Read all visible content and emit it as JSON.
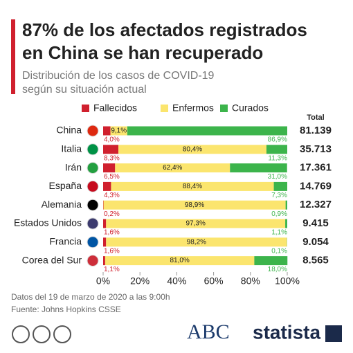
{
  "chart_data": {
    "type": "stacked_bar_horizontal",
    "title_lines": [
      "87% de los afectados registrados",
      "en China se han recuperado"
    ],
    "subtitle_lines": [
      "Distribución de los casos de COVID-19",
      "según su situación actual"
    ],
    "categories": [
      "China",
      "Italia",
      "Irán",
      "España",
      "Alemania",
      "Estados Unidos",
      "Francia",
      "Corea del Sur"
    ],
    "series": [
      {
        "name": "Fallecidos",
        "color": "#d0202e",
        "values": [
          4.0,
          8.3,
          6.5,
          4.3,
          0.2,
          1.6,
          1.6,
          1.1
        ],
        "value_labels": [
          "4,0%",
          "8,3%",
          "6,5%",
          "4,3%",
          "0,2%",
          "1,6%",
          "1,6%",
          "1,1%"
        ]
      },
      {
        "name": "Enfermos",
        "color": "#fbe56e",
        "values": [
          9.1,
          80.4,
          62.4,
          88.4,
          98.9,
          97.3,
          98.2,
          81.0
        ],
        "value_labels": [
          "9,1%",
          "80,4%",
          "62,4%",
          "88,4%",
          "98,9%",
          "97,3%",
          "98,2%",
          "81,0%"
        ]
      },
      {
        "name": "Curados",
        "color": "#3cb44b",
        "values": [
          86.9,
          11.3,
          31.0,
          7.3,
          0.9,
          1.1,
          0.1,
          18.0
        ],
        "value_labels": [
          "86,9%",
          "11,3%",
          "31,0%",
          "7,3%",
          "0,9%",
          "1,1%",
          "0,1%",
          "18,0%"
        ]
      }
    ],
    "totals": {
      "label": "Total",
      "values": [
        81139,
        35713,
        17361,
        14769,
        12327,
        9415,
        9054,
        8565
      ],
      "value_labels": [
        "81.139",
        "35.713",
        "17.361",
        "14.769",
        "12.327",
        "9.415",
        "9.054",
        "8.565"
      ]
    },
    "xlim": [
      0,
      100
    ],
    "xticks": [
      {
        "value": 0,
        "label": "0%"
      },
      {
        "value": 20,
        "label": "20%"
      },
      {
        "value": 40,
        "label": "40%"
      },
      {
        "value": 60,
        "label": "60%"
      },
      {
        "value": 80,
        "label": "80%"
      },
      {
        "value": 100,
        "label": "100%"
      }
    ],
    "legend": "top",
    "notes": [
      "Datos del 19 de marzo de 2020 a las 9:00h",
      "Fuente: Johns Hopkins CSSE"
    ],
    "brands": [
      "ABC",
      "statista"
    ]
  }
}
